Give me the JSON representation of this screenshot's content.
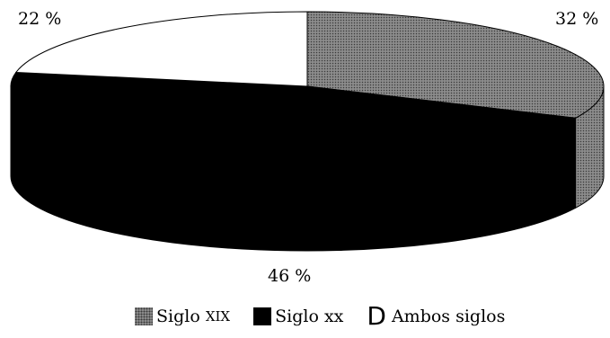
{
  "chart_data": {
    "type": "pie",
    "style": "3d",
    "slices": [
      {
        "label": "Siglo XIX",
        "value": 32,
        "display": "32 %",
        "fill": "dots"
      },
      {
        "label": "Siglo XX",
        "value": 46,
        "display": "46 %",
        "fill": "solid-black"
      },
      {
        "label": "Ambos siglos",
        "value": 22,
        "display": "22 %",
        "fill": "white"
      }
    ],
    "legend": {
      "placement": "bottom",
      "items": [
        {
          "marker": "dot-pattern-square",
          "prefix": "Siglo",
          "suffix": "XIX"
        },
        {
          "marker": "black-square",
          "prefix": "Siglo",
          "suffix": "xx"
        },
        {
          "marker": "D",
          "prefix": "Ambos siglos",
          "suffix": ""
        }
      ]
    },
    "colors": {
      "solid": "#000000",
      "dots_bg": "#8c8c8c",
      "dots_fg": "#3a3a3a",
      "white": "#ffffff"
    }
  }
}
